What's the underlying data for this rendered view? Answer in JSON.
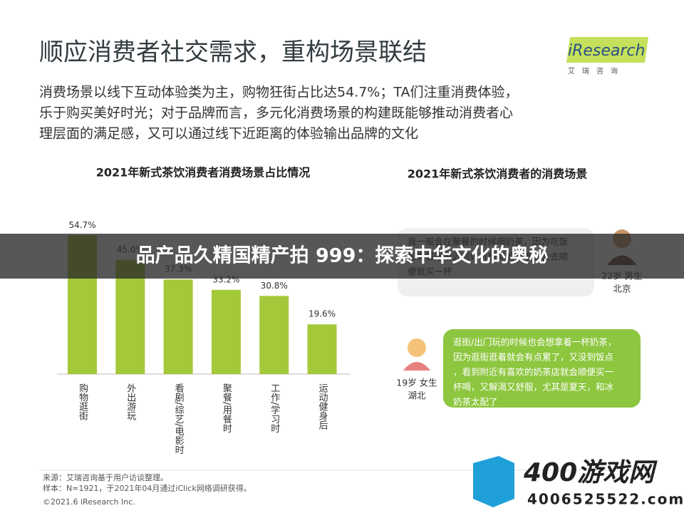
{
  "header": {
    "title": "顺应消费者社交需求，重构场景联结",
    "body": [
      "消费场景以线下互动体验类为主，购物狂街占比达54.7%；TA们注重消费体验，",
      "乐于购买美好时光；对于品牌而言，多元化消费场景的构建既能够推动消费者心",
      "理层面的满足感，又可以通过线下近距离的体验输出品牌的文化"
    ]
  },
  "logo": {
    "name": "iResearch",
    "sub": "艾　瑞　咨　询"
  },
  "chart_data": {
    "type": "bar",
    "title": "2021年新式茶饮消费者消费场景占比情况",
    "categories": [
      "购物逛街",
      "外出游玩",
      "看剧/综艺/电影时",
      "聚餐/用餐时",
      "工作/学习时",
      "运动健身后"
    ],
    "values": [
      54.7,
      45.0,
      37.3,
      33.2,
      30.8,
      19.6
    ],
    "value_labels": [
      "54.7%",
      "45.0%",
      "37.3%",
      "33.2%",
      "30.8%",
      "19.6%"
    ],
    "color": "#a3c93a"
  },
  "right_panel": {
    "title": "2021年新式茶饮消费者的消费场景",
    "quotes": [
      {
        "lines": [
          "我一般会在聚餐的时候喝奶茶，因为吃饭",
          "如果餐厅附近刚好有想喝的奶茶就会去顺",
          "便就买一杯"
        ],
        "person": [
          "22岁 男生",
          "北京"
        ]
      },
      {
        "lines": [
          "逛街/出门玩的时候也会想拿着一杯奶茶，",
          "因为逛街逛着就会有点累了，又没到饭点",
          "，看到附近有喜欢的奶茶店就会顺便买一",
          "杯喝，又解渴又舒服，尤其是夏天，和冰",
          "奶茶太配了"
        ],
        "person": [
          "19岁 女生",
          "湖北"
        ]
      }
    ]
  },
  "footer": {
    "source": "来源：艾瑞咨询基于用户访谈整理。",
    "sample": "样本：N=1921，于2021年04月通过iClick网络调研获得。",
    "copyright": "©2021.6 iResearch Inc."
  },
  "banner": "品产品久精国精产拍 999：探索中华文化的奥秘",
  "watermark": {
    "name": "400游戏网",
    "url": "4006525522.com"
  }
}
